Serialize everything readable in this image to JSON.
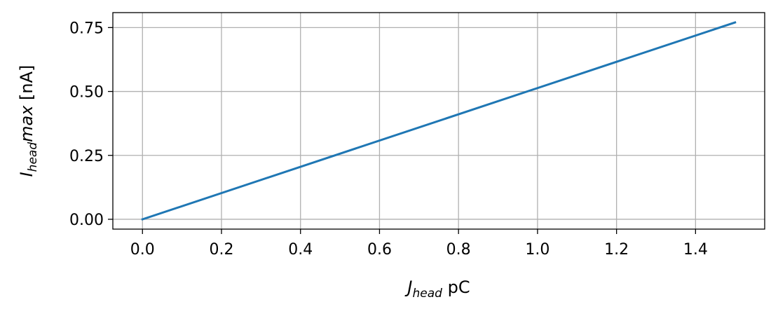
{
  "chart_data": {
    "type": "line",
    "title": "",
    "xlabel": {
      "main": "J",
      "sub": "head",
      "unit": " pC"
    },
    "ylabel": {
      "main": "I",
      "sub": "head",
      "italic_suffix": "max",
      "unit": " [nA]"
    },
    "xlim": [
      -0.075,
      1.575
    ],
    "ylim": [
      -0.0385,
      0.8085
    ],
    "x_ticks": [
      0.0,
      0.2,
      0.4,
      0.6,
      0.8,
      1.0,
      1.2,
      1.4
    ],
    "x_tick_labels": [
      "0.0",
      "0.2",
      "0.4",
      "0.6",
      "0.8",
      "1.0",
      "1.2",
      "1.4"
    ],
    "y_ticks": [
      0.0,
      0.25,
      0.5,
      0.75
    ],
    "y_tick_labels": [
      "0.00",
      "0.25",
      "0.50",
      "0.75"
    ],
    "grid": true,
    "legend": "none",
    "series": [
      {
        "color": "#1f77b4",
        "x": [
          0.0,
          1.5
        ],
        "y": [
          0.0,
          0.77
        ]
      }
    ]
  }
}
